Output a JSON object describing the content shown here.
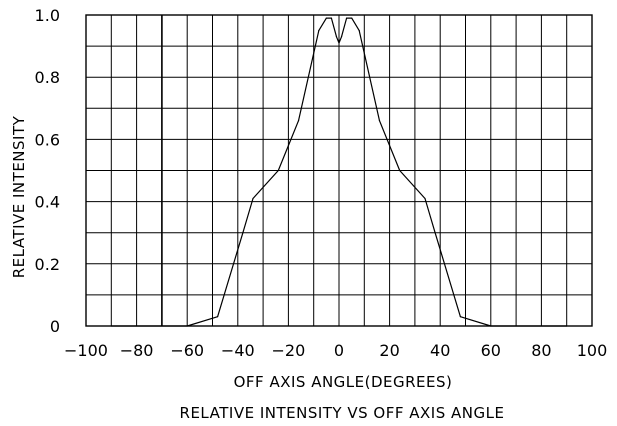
{
  "chart_data": {
    "type": "line",
    "title": "RELATIVE INTENSITY VS OFF AXIS ANGLE",
    "xlabel": "OFF AXIS ANGLE(DEGREES)",
    "ylabel": "RELATIVE INTENSITY",
    "xlim": [
      -100,
      100
    ],
    "ylim": [
      0,
      1.0
    ],
    "xticks": [
      "-100",
      "-80",
      "-60",
      "-40",
      "-20",
      "0",
      "20",
      "40",
      "60",
      "80",
      "100"
    ],
    "yticks": [
      "0",
      "0.2",
      "0.4",
      "0.6",
      "0.8",
      "1.0"
    ],
    "grid": true,
    "series": [
      {
        "x": [
          -90,
          -60,
          -48,
          -38,
          -34,
          -24,
          -16,
          -8,
          -5,
          -3,
          -1,
          0,
          1,
          3,
          5,
          8,
          16,
          24,
          34,
          38,
          48,
          60,
          90
        ],
        "y": [
          0,
          0,
          0.03,
          0.3,
          0.41,
          0.5,
          0.66,
          0.95,
          0.99,
          0.99,
          0.93,
          0.91,
          0.93,
          0.99,
          0.99,
          0.95,
          0.66,
          0.5,
          0.41,
          0.3,
          0.03,
          0,
          0
        ]
      }
    ]
  }
}
